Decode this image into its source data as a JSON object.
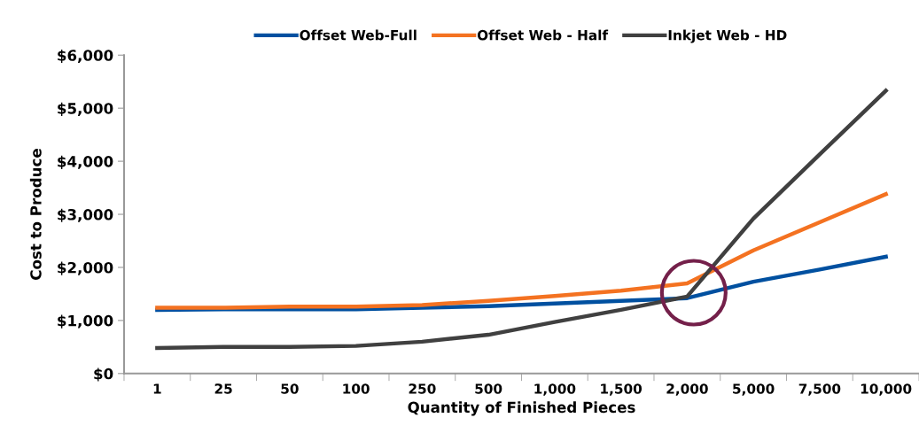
{
  "chart_data": {
    "type": "line",
    "xlabel": "Quantity of Finished Pieces",
    "ylabel": "Cost to Produce",
    "categories": [
      "1",
      "25",
      "50",
      "100",
      "250",
      "500",
      "1,000",
      "1,500",
      "2,000",
      "5,000",
      "7,500",
      "10,000"
    ],
    "series": [
      {
        "name": "Offset Web-Full",
        "color": "#0050a0",
        "values": [
          1200,
          1210,
          1210,
          1210,
          1240,
          1270,
          1320,
          1370,
          1420,
          1730,
          1960,
          2200
        ]
      },
      {
        "name": "Offset Web - Half",
        "color": "#f47221",
        "values": [
          1240,
          1240,
          1260,
          1260,
          1290,
          1370,
          1460,
          1560,
          1700,
          2320,
          2850,
          3380
        ]
      },
      {
        "name": "Inkjet Web - HD",
        "color": "#404040",
        "values": [
          480,
          500,
          500,
          520,
          600,
          730,
          970,
          1200,
          1450,
          2920,
          4130,
          5330
        ]
      }
    ],
    "ylim": [
      0,
      6000
    ],
    "yticks": [
      {
        "value": 0,
        "label": "$0"
      },
      {
        "value": 1000,
        "label": "$1,000"
      },
      {
        "value": 2000,
        "label": "$2,000"
      },
      {
        "value": 3000,
        "label": "$3,000"
      },
      {
        "value": 4000,
        "label": "$4,000"
      },
      {
        "value": 5000,
        "label": "$5,000"
      },
      {
        "value": 6000,
        "label": "$6,000"
      }
    ],
    "grid": false,
    "legend": "top",
    "marker": "none",
    "line_style": "solid"
  }
}
